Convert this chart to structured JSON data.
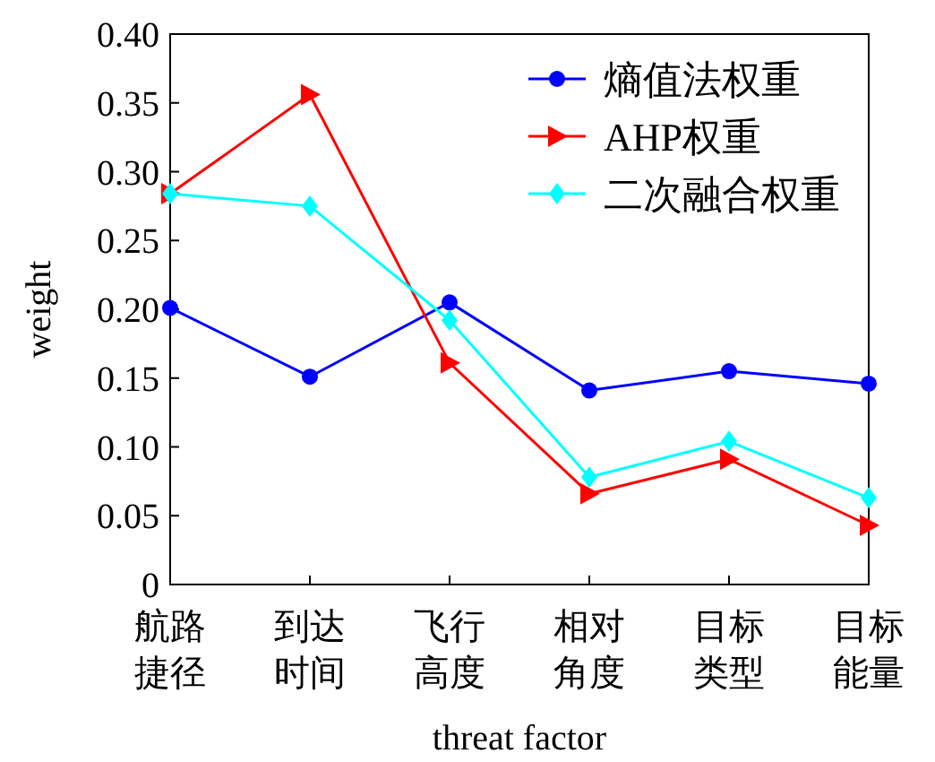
{
  "chart_data": {
    "type": "line",
    "xlabel": "threat factor",
    "ylabel": "weight",
    "categories": [
      "航路捷径",
      "到达时间",
      "飞行高度",
      "相对角度",
      "目标类型",
      "目标能量"
    ],
    "series": [
      {
        "name": "熵值法权重",
        "color": "#0000ff",
        "marker": "circle",
        "values": [
          0.201,
          0.151,
          0.205,
          0.141,
          0.155,
          0.146
        ]
      },
      {
        "name": "AHP权重",
        "color": "#ff0000",
        "marker": "triangle",
        "values": [
          0.284,
          0.356,
          0.161,
          0.066,
          0.091,
          0.043
        ]
      },
      {
        "name": "二次融合权重",
        "color": "#00ffff",
        "marker": "diamond",
        "values": [
          0.284,
          0.275,
          0.192,
          0.078,
          0.104,
          0.063
        ]
      }
    ],
    "ylim": [
      0,
      0.4
    ],
    "yticks": [
      0,
      {
        "value": 0.05,
        "label": "0.05"
      },
      {
        "value": 0.1,
        "label": "0.10"
      },
      {
        "value": 0.15,
        "label": "0.15"
      },
      {
        "value": 0.2,
        "label": "0.20"
      },
      {
        "value": 0.25,
        "label": "0.25"
      },
      {
        "value": 0.3,
        "label": "0.30"
      },
      {
        "value": 0.35,
        "label": "0.35"
      },
      {
        "value": 0.4,
        "label": "0.40"
      }
    ],
    "legend": "top right",
    "grid": false,
    "line_style": "solid"
  }
}
